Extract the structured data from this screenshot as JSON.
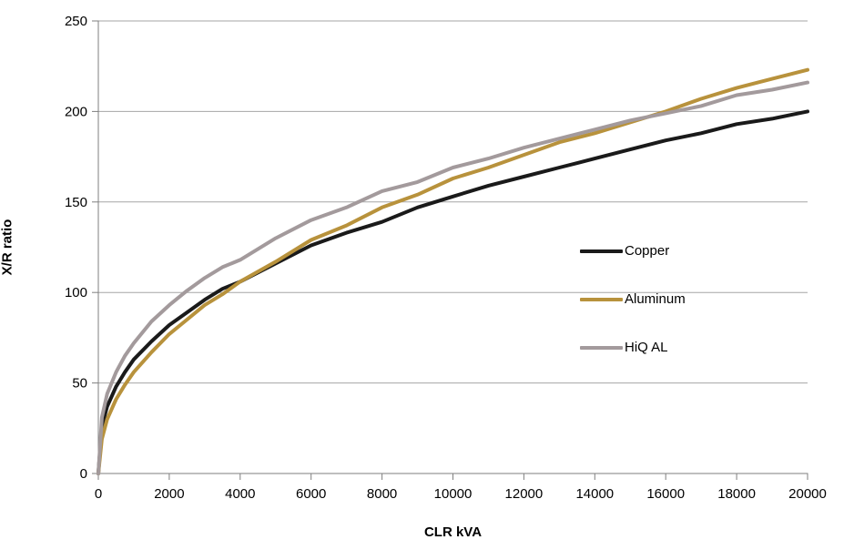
{
  "chart_title": "",
  "axes": {
    "y_title": "X/R ratio",
    "x_title": "CLR kVA"
  },
  "colors": {
    "copper": "#1a1a1a",
    "aluminum": "#b8923c",
    "hiq_al": "#a39a9c",
    "gridline": "#a6a6a6",
    "axis_line": "#7f7f7f",
    "text": "#000000",
    "background": "#ffffff"
  },
  "chart_data": {
    "type": "line",
    "title": "",
    "xlabel": "CLR kVA",
    "ylabel": "X/R ratio",
    "xlim": [
      0,
      20000
    ],
    "ylim": [
      0,
      250
    ],
    "x_ticks": [
      0,
      2000,
      4000,
      6000,
      8000,
      10000,
      12000,
      14000,
      16000,
      18000,
      20000
    ],
    "y_ticks": [
      0,
      50,
      100,
      150,
      200,
      250
    ],
    "grid": "horizontal",
    "legend_position": "inside-center-right",
    "x": [
      0,
      100,
      250,
      500,
      750,
      1000,
      1500,
      2000,
      2500,
      3000,
      3500,
      4000,
      5000,
      6000,
      7000,
      8000,
      9000,
      10000,
      11000,
      12000,
      13000,
      14000,
      15000,
      16000,
      17000,
      18000,
      19000,
      20000
    ],
    "series": [
      {
        "name": "Copper",
        "color_key": "copper",
        "stroke_width": 4,
        "values": [
          0,
          26,
          37,
          48,
          56,
          63,
          73,
          82,
          89,
          96,
          102,
          106,
          116,
          126,
          133,
          139,
          147,
          153,
          159,
          164,
          169,
          174,
          179,
          184,
          188,
          193,
          196,
          200
        ]
      },
      {
        "name": "Aluminum",
        "color_key": "aluminum",
        "stroke_width": 4,
        "values": [
          0,
          19,
          30,
          41,
          49,
          56,
          67,
          77,
          85,
          93,
          99,
          106,
          117,
          129,
          137,
          147,
          154,
          163,
          169,
          176,
          183,
          188,
          194,
          200,
          207,
          213,
          218,
          223
        ]
      },
      {
        "name": "HiQ AL",
        "color_key": "hiq_al",
        "stroke_width": 4,
        "values": [
          0,
          31,
          44,
          56,
          65,
          72,
          84,
          93,
          101,
          108,
          114,
          118,
          130,
          140,
          147,
          156,
          161,
          169,
          174,
          180,
          185,
          190,
          195,
          199,
          203,
          209,
          212,
          216
        ]
      }
    ]
  }
}
